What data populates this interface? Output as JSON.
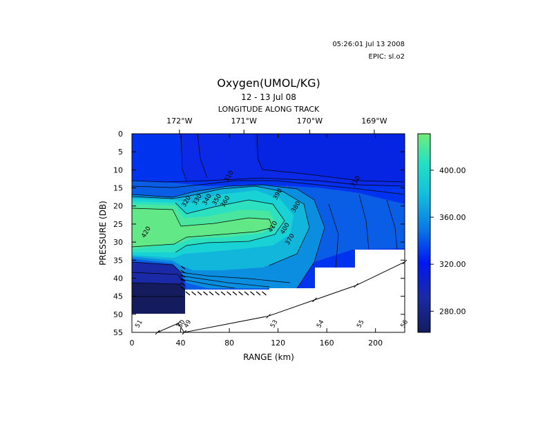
{
  "header": {
    "timestamp": "05:26:01 Jul 13 2008",
    "epic": "EPIC:  sl.o2"
  },
  "chart_data": {
    "type": "heatmap",
    "title": "Oxygen(UMOL/KG)",
    "subtitle": "12 - 13 Jul 08",
    "top_axis_label": "LONGITUDE ALONG TRACK",
    "top_ticks": [
      {
        "label": "172°W",
        "range_km": 39
      },
      {
        "label": "171°W",
        "range_km": 92
      },
      {
        "label": "170°W",
        "range_km": 146
      },
      {
        "label": "169°W",
        "range_km": 199
      }
    ],
    "xlabel": "RANGE (km)",
    "ylabel": "PRESSURE (DB)",
    "xlim": [
      0,
      224
    ],
    "ylim": [
      55,
      0
    ],
    "x_ticks": [
      0,
      40,
      80,
      120,
      160,
      200
    ],
    "y_ticks": [
      0,
      5,
      10,
      15,
      20,
      25,
      30,
      35,
      40,
      45,
      50,
      55
    ],
    "colorbar": {
      "range": [
        262,
        431
      ],
      "ticks": [
        {
          "value": 400,
          "label": "400.00"
        },
        {
          "value": 360,
          "label": "360.00"
        },
        {
          "value": 320,
          "label": "320.00"
        },
        {
          "value": 280,
          "label": "280.00"
        }
      ]
    },
    "contour_labels": [
      {
        "text": "310",
        "x": 81,
        "y": 12
      },
      {
        "text": "310",
        "x": 185,
        "y": 13.5
      },
      {
        "text": "320",
        "x": 46,
        "y": 19
      },
      {
        "text": "330",
        "x": 55,
        "y": 18.5
      },
      {
        "text": "340",
        "x": 63,
        "y": 18.5
      },
      {
        "text": "350",
        "x": 71,
        "y": 18.5
      },
      {
        "text": "360",
        "x": 78,
        "y": 19
      },
      {
        "text": "390",
        "x": 121,
        "y": 17
      },
      {
        "text": "380",
        "x": 136,
        "y": 20.5
      },
      {
        "text": "420",
        "x": 13,
        "y": 27.5
      },
      {
        "text": "410",
        "x": 117,
        "y": 26
      },
      {
        "text": "400",
        "x": 127,
        "y": 26.5
      },
      {
        "text": "370",
        "x": 131,
        "y": 29.5
      }
    ],
    "station_labels": [
      {
        "text": "51",
        "x": 7
      },
      {
        "text": "50",
        "x": 42
      },
      {
        "text": "49",
        "x": 47
      },
      {
        "text": "53",
        "x": 118
      },
      {
        "text": "54",
        "x": 156
      },
      {
        "text": "55",
        "x": 189
      },
      {
        "text": "56",
        "x": 225
      }
    ],
    "track_points": [
      {
        "x": 21,
        "y": 55
      },
      {
        "x": 38,
        "y": 52.5
      },
      {
        "x": 43,
        "y": 55
      },
      {
        "x": 112,
        "y": 50.5
      },
      {
        "x": 150,
        "y": 46
      },
      {
        "x": 184,
        "y": 42
      },
      {
        "x": 224,
        "y": 35.5
      }
    ],
    "colors": {
      "low": "#1e2a80",
      "mid_low": "#0033ee",
      "mid": "#0b9cde",
      "mid_high": "#18dcd6",
      "high": "#62e886"
    }
  }
}
